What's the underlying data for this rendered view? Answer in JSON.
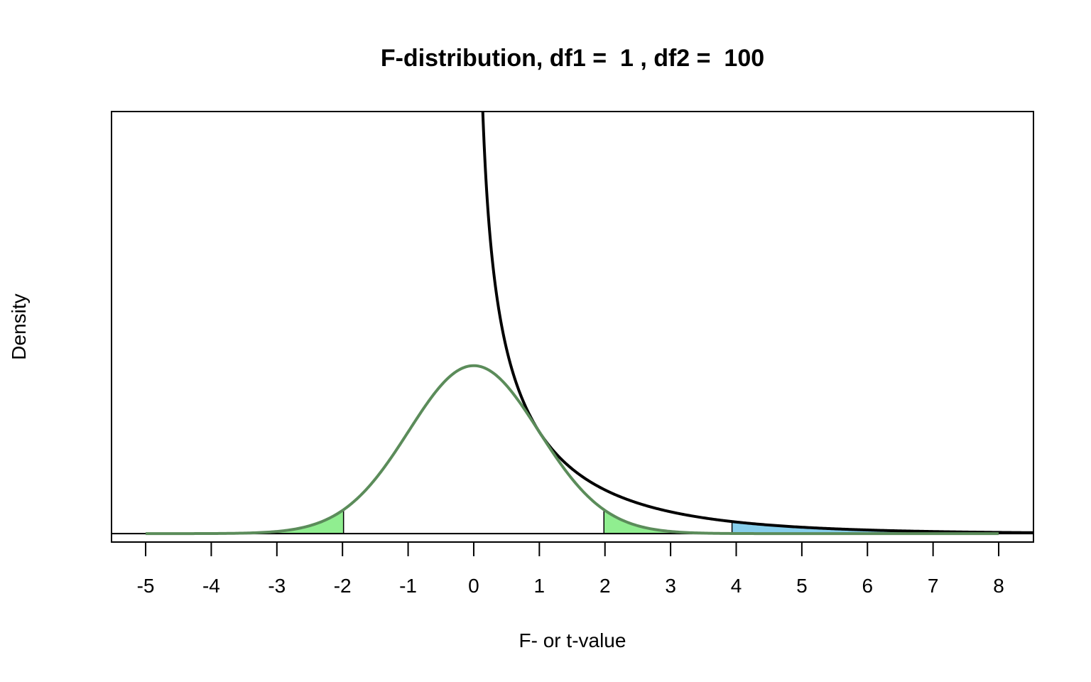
{
  "chart_data": {
    "type": "line",
    "title": "F-distribution, df1 =  1 , df2 =  100",
    "xlabel": "F- or t-value",
    "ylabel": "Density",
    "xlim": [
      -5.52,
      8.53
    ],
    "ylim": [
      -0.02,
      1.0
    ],
    "x_ticks": [
      -5,
      -4,
      -3,
      -2,
      -1,
      0,
      1,
      2,
      3,
      4,
      5,
      6,
      7,
      8
    ],
    "x_tick_labels": [
      "-5",
      "-4",
      "-3",
      "-2",
      "-1",
      "0",
      "1",
      "2",
      "3",
      "4",
      "5",
      "6",
      "7",
      "8"
    ],
    "grid": false,
    "series": [
      {
        "distribution": "F",
        "df1": 1,
        "df2": 100,
        "x_from": 0.0,
        "x_to": 8.53,
        "color": "#000000"
      },
      {
        "distribution": "t",
        "df": 100,
        "x_from": -5,
        "x_to": 8.0,
        "color": "#5b8c5a"
      }
    ],
    "shaded_regions": [
      {
        "distribution": "t",
        "from": -5,
        "to": -1.984,
        "color": "#90ee90"
      },
      {
        "distribution": "t",
        "from": 1.984,
        "to": 8.0,
        "color": "#90ee90"
      },
      {
        "distribution": "F",
        "from": 3.936,
        "to": 8.53,
        "color": "#87ceeb"
      }
    ],
    "baseline_y": 0
  }
}
